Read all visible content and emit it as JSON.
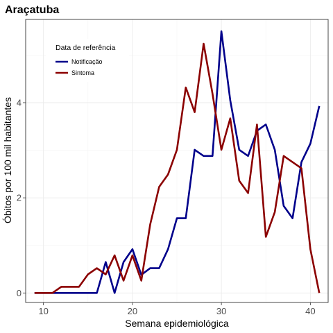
{
  "chart_data": {
    "type": "line",
    "title": "Araçatuba",
    "xlabel": "Semana epidemiológica",
    "ylabel": "Óbitos por 100 mil habitantes",
    "xlim": [
      8,
      42
    ],
    "ylim": [
      -0.2,
      5.75
    ],
    "x_ticks": [
      10,
      20,
      30,
      40
    ],
    "y_ticks": [
      0,
      2,
      4
    ],
    "grid": true,
    "legend": {
      "title": "Data de referência",
      "position": "top-left"
    },
    "series": [
      {
        "name": "Notificação",
        "color": "#00008b",
        "x": [
          9,
          10,
          11,
          12,
          13,
          14,
          15,
          16,
          17,
          18,
          19,
          20,
          21,
          22,
          23,
          24,
          25,
          26,
          27,
          28,
          29,
          30,
          31,
          32,
          33,
          34,
          35,
          36,
          37,
          38,
          39,
          40,
          41
        ],
        "y": [
          0,
          0,
          0,
          0,
          0,
          0,
          0,
          0,
          0.65,
          0,
          0.65,
          0.92,
          0.38,
          0.52,
          0.52,
          0.92,
          1.57,
          1.57,
          3.01,
          2.88,
          2.88,
          5.5,
          4.05,
          3.01,
          2.88,
          3.41,
          3.54,
          3.01,
          1.83,
          1.57,
          2.75,
          3.14,
          3.93
        ]
      },
      {
        "name": "Sintoma",
        "color": "#8b0000",
        "x": [
          9,
          10,
          11,
          12,
          13,
          14,
          15,
          16,
          17,
          18,
          19,
          20,
          21,
          22,
          23,
          24,
          25,
          26,
          27,
          28,
          29,
          30,
          31,
          32,
          33,
          34,
          35,
          36,
          37,
          38,
          39,
          40,
          41
        ],
        "y": [
          0,
          0,
          0,
          0.13,
          0.13,
          0.13,
          0.39,
          0.52,
          0.39,
          0.79,
          0.26,
          0.79,
          0.26,
          1.44,
          2.23,
          2.49,
          3.01,
          4.32,
          3.8,
          5.24,
          4.19,
          3.01,
          3.67,
          2.36,
          2.1,
          3.54,
          1.18,
          1.7,
          2.88,
          2.75,
          2.62,
          0.92,
          0
        ]
      }
    ]
  }
}
